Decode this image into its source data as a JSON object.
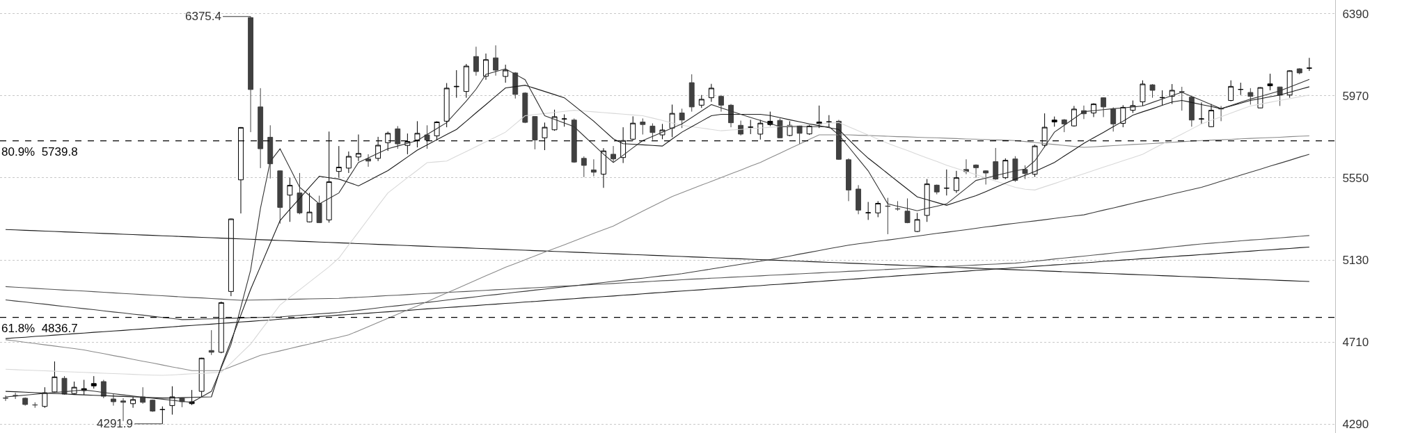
{
  "chart_data": {
    "type": "candlestick",
    "colors": [
      "#404040",
      "#404040",
      "#404040",
      "#404040",
      "#ffffff",
      "#ffffff",
      "#404040",
      "#ffffff",
      "#000000",
      "#000000",
      "#404040",
      "#404040",
      "#404040",
      "#ffffff",
      "#404040",
      "#404040",
      "#000000",
      "#ffffff",
      "#404040",
      "#000000",
      "#ffffff",
      "#404040",
      "#ffffff",
      "#ffffff",
      "#ffffff",
      "#404040",
      "#404040",
      "#404040",
      "#404040",
      "#ffffff",
      "#404040",
      "#ffffff",
      "#404040",
      "#ffffff",
      "#ffffff",
      "#ffffff",
      "#ffffff",
      "#404040",
      "#ffffff",
      "#ffffff",
      "#404040",
      "#ffffff",
      "#ffffff",
      "#404040",
      "#ffffff",
      "#ffffff",
      "#000000",
      "#ffffff",
      "#404040",
      "#ffffff",
      "#404040",
      "#ffffff",
      "#404040",
      "#404040",
      "#404040",
      "#ffffff",
      "#ffffff",
      "#000000",
      "#404040",
      "#404040",
      "#404040",
      "#ffffff",
      "#404040",
      "#ffffff",
      "#ffffff",
      "#404040",
      "#404040",
      "#ffffff",
      "#ffffff",
      "#404040",
      "#404040",
      "#ffffff",
      "#ffffff",
      "#404040",
      "#404040",
      "#404040",
      "#000000",
      "#ffffff",
      "#000000",
      "#404040",
      "#ffffff",
      "#404040",
      "#ffffff",
      "#000000",
      "#000000",
      "#404040",
      "#404040",
      "#404040",
      "#000000",
      "#ffffff",
      "#404040",
      "#404040",
      "#404040",
      "#ffffff",
      "#ffffff",
      "#404040",
      "#000000",
      "#ffffff",
      "#404040",
      "#404040",
      "#404040",
      "#404040",
      "#ffffff",
      "#404040",
      "#404040",
      "#ffffff",
      "#ffffff",
      "#000000",
      "#404040",
      "#ffffff",
      "#404040",
      "#ffffff",
      "#404040",
      "#404040",
      "#ffffff",
      "#ffffff",
      "#ffffff",
      "#404040",
      "#000000",
      "#ffffff",
      "#404040",
      "#404040",
      "#000000",
      "#ffffff",
      "#404040",
      "#ffffff",
      "#000000",
      "#404040",
      "#ffffff",
      "#000000",
      "#404040",
      "#ffffff",
      "#404040",
      "#000000"
    ],
    "categories": [
      null,
      null,
      null,
      null,
      null,
      null,
      null,
      null,
      null,
      null,
      null,
      null,
      null,
      null,
      null,
      null,
      null,
      null,
      null,
      null,
      null,
      null,
      null,
      null,
      null,
      null,
      null,
      null,
      null,
      null,
      null,
      null,
      null,
      null,
      null,
      null,
      null,
      null,
      null,
      null,
      null,
      null,
      null,
      null,
      null,
      null,
      null,
      null,
      null,
      null,
      null,
      null,
      null,
      null,
      null,
      null,
      null,
      null,
      null,
      null,
      null,
      null,
      null,
      null,
      null,
      null,
      null,
      null,
      null,
      null,
      null,
      null,
      null,
      null,
      null,
      null,
      null,
      null,
      null,
      null,
      null,
      null,
      null,
      null,
      null,
      null,
      null,
      null,
      null,
      null,
      null,
      null,
      null,
      null,
      null,
      null,
      null,
      null,
      null,
      null,
      null,
      null,
      null,
      null,
      null,
      null,
      null,
      null,
      null,
      null,
      null,
      null,
      null,
      null,
      null,
      null,
      null,
      null,
      null,
      null,
      null,
      null,
      null,
      null,
      null,
      null,
      null,
      null,
      null,
      null,
      null,
      null,
      null,
      null
    ],
    "ohlc": [
      [
        4423,
        4437,
        4409,
        4424
      ],
      [
        4437,
        4451,
        4419,
        4436
      ],
      [
        4423,
        4427,
        4385,
        4391
      ],
      [
        4388,
        4402,
        4374,
        4389
      ],
      [
        4381,
        4479,
        4374,
        4451
      ],
      [
        4455,
        4611,
        4451,
        4532
      ],
      [
        4525,
        4536,
        4441,
        4444
      ],
      [
        4447,
        4508,
        4441,
        4479
      ],
      [
        4462,
        4517,
        4441,
        4472
      ],
      [
        4486,
        4536,
        4472,
        4498
      ],
      [
        4508,
        4517,
        4423,
        4433
      ],
      [
        4419,
        4444,
        4385,
        4405
      ],
      [
        4409,
        4423,
        4306,
        4402
      ],
      [
        4395,
        4430,
        4374,
        4416
      ],
      [
        4430,
        4479,
        4395,
        4402
      ],
      [
        4413,
        4416,
        4353,
        4357
      ],
      [
        4364,
        4381,
        4291.9,
        4365
      ],
      [
        4385,
        4484,
        4339,
        4430
      ],
      [
        4423,
        4425,
        4377,
        4405
      ],
      [
        4395,
        4465,
        4388,
        4405
      ],
      [
        4458,
        4630,
        4430,
        4628
      ],
      [
        4667,
        4771,
        4644,
        4658
      ],
      [
        4658,
        4917,
        4653,
        4912
      ],
      [
        4969,
        5342,
        4945,
        5340
      ],
      [
        5540,
        5810,
        5368,
        5808
      ],
      [
        6370,
        6375.4,
        5784,
        6002
      ],
      [
        5913,
        6009,
        5600,
        5699
      ],
      [
        5758,
        5819,
        5547,
        5622
      ],
      [
        5586,
        5588,
        5316,
        5399
      ],
      [
        5462,
        5551,
        5325,
        5512
      ],
      [
        5473,
        5575,
        5364,
        5371
      ],
      [
        5325,
        5473,
        5322,
        5375
      ],
      [
        5420,
        5459,
        5319,
        5321
      ],
      [
        5335,
        5787,
        5321,
        5530
      ],
      [
        5583,
        5713,
        5551,
        5605
      ],
      [
        5600,
        5685,
        5575,
        5660
      ],
      [
        5657,
        5772,
        5636,
        5675
      ],
      [
        5647,
        5671,
        5607,
        5636
      ],
      [
        5650,
        5760,
        5636,
        5717
      ],
      [
        5730,
        5787,
        5688,
        5778
      ],
      [
        5801,
        5815,
        5699,
        5724
      ],
      [
        5716,
        5777,
        5671,
        5736
      ],
      [
        5744,
        5840,
        5706,
        5778
      ],
      [
        5770,
        5819,
        5699,
        5744
      ],
      [
        5765,
        5840,
        5741,
        5836
      ],
      [
        5840,
        6035,
        5809,
        6009
      ],
      [
        6016,
        6101,
        5960,
        6018
      ],
      [
        5992,
        6133,
        5960,
        6122
      ],
      [
        6171,
        6221,
        6073,
        6094
      ],
      [
        6070,
        6186,
        6052,
        6155
      ],
      [
        6164,
        6228,
        6073,
        6101
      ],
      [
        6069,
        6129,
        6037,
        6101
      ],
      [
        6087,
        6091,
        5956,
        5977
      ],
      [
        5984,
        5988,
        5830,
        5834
      ],
      [
        5864,
        5866,
        5696,
        5744
      ],
      [
        5755,
        5833,
        5692,
        5809
      ],
      [
        5796,
        5899,
        5791,
        5863
      ],
      [
        5851,
        5875,
        5812,
        5852
      ],
      [
        5846,
        5854,
        5627,
        5631
      ],
      [
        5650,
        5660,
        5554,
        5614
      ],
      [
        5591,
        5645,
        5558,
        5579
      ],
      [
        5569,
        5702,
        5499,
        5688
      ],
      [
        5671,
        5713,
        5629,
        5647
      ],
      [
        5654,
        5809,
        5626,
        5741
      ],
      [
        5748,
        5865,
        5741,
        5830
      ],
      [
        5836,
        5854,
        5772,
        5823
      ],
      [
        5815,
        5829,
        5744,
        5782
      ],
      [
        5770,
        5826,
        5748,
        5795
      ],
      [
        5805,
        5925,
        5758,
        5880
      ],
      [
        5882,
        5904,
        5805,
        5846
      ],
      [
        6037,
        6080,
        5889,
        5913
      ],
      [
        5922,
        5974,
        5908,
        5952
      ],
      [
        5960,
        6031,
        5939,
        6009
      ],
      [
        5967,
        5974,
        5889,
        5922
      ],
      [
        5922,
        5928,
        5809,
        5832
      ],
      [
        5819,
        5843,
        5767,
        5774
      ],
      [
        5809,
        5847,
        5774,
        5810
      ],
      [
        5774,
        5847,
        5746,
        5830
      ],
      [
        5823,
        5889,
        5815,
        5840
      ],
      [
        5844,
        5854,
        5753,
        5755
      ],
      [
        5767,
        5840,
        5763,
        5819
      ],
      [
        5816,
        5819,
        5724,
        5778
      ],
      [
        5775,
        5823,
        5770,
        5815
      ],
      [
        5826,
        5920,
        5805,
        5836
      ],
      [
        5836,
        5871,
        5812,
        5837
      ],
      [
        5840,
        5847,
        5642,
        5645
      ],
      [
        5643,
        5650,
        5431,
        5488
      ],
      [
        5493,
        5513,
        5364,
        5385
      ],
      [
        5371,
        5427,
        5335,
        5372
      ],
      [
        5371,
        5431,
        5349,
        5420
      ],
      [
        5406,
        5448,
        5262,
        5405
      ],
      [
        5392,
        5431,
        5382,
        5391
      ],
      [
        5380,
        5445,
        5318,
        5321
      ],
      [
        5276,
        5371,
        5273,
        5337
      ],
      [
        5358,
        5544,
        5325,
        5519
      ],
      [
        5513,
        5516,
        5466,
        5478
      ],
      [
        5497,
        5593,
        5460,
        5498
      ],
      [
        5485,
        5586,
        5473,
        5551
      ],
      [
        5593,
        5645,
        5569,
        5582
      ],
      [
        5616,
        5619,
        5551,
        5602
      ],
      [
        5586,
        5589,
        5516,
        5575
      ],
      [
        5633,
        5703,
        5540,
        5544
      ],
      [
        5551,
        5650,
        5544,
        5640
      ],
      [
        5647,
        5661,
        5530,
        5537
      ],
      [
        5593,
        5614,
        5544,
        5572
      ],
      [
        5569,
        5720,
        5555,
        5713
      ],
      [
        5717,
        5880,
        5706,
        5809
      ],
      [
        5836,
        5864,
        5812,
        5846
      ],
      [
        5847,
        5851,
        5784,
        5826
      ],
      [
        5816,
        5918,
        5812,
        5902
      ],
      [
        5894,
        5920,
        5851,
        5878
      ],
      [
        5882,
        5932,
        5861,
        5928
      ],
      [
        5960,
        5962,
        5861,
        5913
      ],
      [
        5902,
        5911,
        5787,
        5826
      ],
      [
        5829,
        5922,
        5809,
        5911
      ],
      [
        5896,
        5946,
        5882,
        5920
      ],
      [
        5939,
        6049,
        5918,
        6030
      ],
      [
        6026,
        6030,
        5960,
        5998
      ],
      [
        5960,
        5998,
        5922,
        5961
      ],
      [
        5967,
        6030,
        5928,
        5998
      ],
      [
        5991,
        6016,
        5894,
        5990
      ],
      [
        5963,
        5967,
        5812,
        5846
      ],
      [
        5851,
        5936,
        5826,
        5852
      ],
      [
        5812,
        5928,
        5810,
        5896
      ],
      [
        5904,
        5918,
        5840,
        5903
      ],
      [
        5946,
        6049,
        5942,
        6018
      ],
      [
        6002,
        6037,
        5974,
        6003
      ],
      [
        5987,
        6009,
        5925,
        5967
      ],
      [
        5908,
        6014,
        5906,
        6012
      ],
      [
        6021,
        6083,
        5998,
        6031
      ],
      [
        6015,
        6016,
        5918,
        5973
      ],
      [
        5974,
        6101,
        5960,
        6098
      ],
      [
        6108,
        6111,
        6080,
        6087
      ],
      [
        6111,
        6164,
        6097,
        6112
      ]
    ],
    "series": [
      {
        "type": "line",
        "color": "#1a1a1a",
        "values": [
          5286,
          5284,
          5282,
          5280,
          5278,
          5276,
          5274,
          5272,
          5270,
          5268,
          5266,
          5264,
          5262,
          5260,
          5258,
          5256,
          5254,
          5252,
          5250,
          5248,
          5246,
          5244,
          5242,
          5240,
          5238,
          5236,
          5234,
          5232,
          5230,
          5228,
          5226,
          5224,
          5222,
          5220,
          5218,
          5216,
          5214,
          5212,
          5210,
          5208,
          5206,
          5204,
          5202,
          5200,
          5198,
          5196,
          5194,
          5192,
          5190,
          5188,
          5186,
          5184,
          5182,
          5180,
          5178,
          5176,
          5174,
          5172,
          5170,
          5168,
          5166,
          5164,
          5162,
          5160,
          5158,
          5156,
          5154,
          5152,
          5150,
          5148,
          5146,
          5144,
          5142,
          5140,
          5138,
          5136,
          5134,
          5132,
          5130,
          5128,
          5126,
          5124,
          5122,
          5120,
          5118,
          5116,
          5114,
          5112,
          5110,
          5108,
          5106,
          5104,
          5102,
          5100,
          5098,
          5096,
          5094,
          5092,
          5090,
          5088,
          5086,
          5084,
          5082,
          5080,
          5078,
          5076,
          5074,
          5072,
          5070,
          5068,
          5066,
          5064,
          5062,
          5060,
          5058,
          5056,
          5054,
          5052,
          5050,
          5048,
          5046,
          5044,
          5042,
          5040,
          5038,
          5036,
          5034,
          5032,
          5030,
          5028,
          5026,
          5024,
          5022,
          5020
        ]
      },
      {
        "type": "line",
        "color": "#1a1a1a",
        "values": [
          4728,
          4732,
          4735,
          4739,
          4742,
          4746,
          4749,
          4753,
          4756,
          4760,
          4763,
          4767,
          4770,
          4774,
          4777,
          4781,
          4784,
          4788,
          4792,
          4795,
          4799,
          4802,
          4806,
          4809,
          4813,
          4816,
          4820,
          4823,
          4827,
          4830,
          4834,
          4837,
          4841,
          4844,
          4848,
          4851,
          4855,
          4858,
          4862,
          4865,
          4869,
          4872,
          4876,
          4880,
          4883,
          4887,
          4890,
          4894,
          4897,
          4901,
          4904,
          4908,
          4911,
          4915,
          4918,
          4922,
          4925,
          4929,
          4932,
          4936,
          4939,
          4943,
          4946,
          4950,
          4953,
          4957,
          4961,
          4964,
          4968,
          4971,
          4975,
          4978,
          4982,
          4985,
          4989,
          4992,
          4996,
          4999,
          5003,
          5006,
          5010,
          5013,
          5017,
          5020,
          5024,
          5027,
          5031,
          5034,
          5038,
          5042,
          5045,
          5049,
          5052,
          5056,
          5059,
          5063,
          5066,
          5070,
          5073,
          5077,
          5080,
          5084,
          5087,
          5091,
          5094,
          5098,
          5101,
          5105,
          5108,
          5112,
          5115,
          5119,
          5123,
          5126,
          5130,
          5133,
          5137,
          5140,
          5144,
          5147,
          5151,
          5154,
          5158,
          5161,
          5165,
          5168,
          5172,
          5175,
          5179,
          5182,
          5186,
          5189,
          5193,
          5196
        ]
      },
      {
        "type": "line",
        "color": "#555555",
        "values": [
          4994,
          4991,
          4988,
          4985,
          4982,
          4979,
          4976,
          4974,
          4971,
          4968,
          4965,
          4962,
          4959,
          4956,
          4953,
          4950,
          4947,
          4944,
          4941,
          4938,
          4936,
          4933,
          4930,
          4927,
          4924,
          4925,
          4926,
          4927,
          4928,
          4929,
          4930,
          4931,
          4932,
          4933,
          4934,
          4937,
          4939,
          4942,
          4945,
          4948,
          4950,
          4953,
          4956,
          4959,
          4961,
          4964,
          4967,
          4969,
          4972,
          4975,
          4978,
          4980,
          4983,
          4986,
          4988,
          4991,
          4994,
          4997,
          4999,
          5002,
          5005,
          5007,
          5010,
          5013,
          5015,
          5018,
          5021,
          5024,
          5026,
          5029,
          5032,
          5034,
          5037,
          5039,
          5042,
          5044,
          5047,
          5049,
          5052,
          5054,
          5057,
          5059,
          5062,
          5064,
          5067,
          5069,
          5072,
          5074,
          5077,
          5079,
          5082,
          5084,
          5087,
          5089,
          5092,
          5094,
          5097,
          5099,
          5102,
          5104,
          5107,
          5109,
          5112,
          5114,
          5119,
          5124,
          5129,
          5135,
          5140,
          5145,
          5150,
          5155,
          5160,
          5166,
          5171,
          5176,
          5181,
          5186,
          5191,
          5197,
          5202,
          5207,
          5212,
          5216,
          5220,
          5224,
          5228,
          5232,
          5235,
          5239,
          5243,
          5247,
          5251,
          5255
        ]
      },
      {
        "type": "line",
        "color": "#3a3a3a",
        "values": [
          4926,
          4920,
          4915,
          4909,
          4904,
          4898,
          4892,
          4887,
          4881,
          4876,
          4870,
          4864,
          4859,
          4853,
          4848,
          4842,
          4836,
          4831,
          4825,
          4826,
          4828,
          4829,
          4831,
          4832,
          4833,
          4835,
          4836,
          4838,
          4839,
          4843,
          4847,
          4851,
          4855,
          4858,
          4862,
          4868,
          4873,
          4879,
          4885,
          4891,
          4896,
          4902,
          4908,
          4913,
          4919,
          4925,
          4931,
          4936,
          4942,
          4948,
          4953,
          4959,
          4965,
          4970,
          4976,
          4981,
          4987,
          4993,
          4998,
          5004,
          5009,
          5015,
          5021,
          5026,
          5032,
          5037,
          5043,
          5049,
          5054,
          5060,
          5068,
          5076,
          5084,
          5092,
          5100,
          5108,
          5116,
          5124,
          5132,
          5141,
          5150,
          5160,
          5169,
          5178,
          5188,
          5197,
          5206,
          5213,
          5219,
          5226,
          5232,
          5239,
          5246,
          5252,
          5259,
          5266,
          5272,
          5279,
          5285,
          5292,
          5299,
          5305,
          5312,
          5318,
          5324,
          5330,
          5336,
          5343,
          5349,
          5355,
          5361,
          5373,
          5385,
          5396,
          5408,
          5420,
          5432,
          5443,
          5455,
          5467,
          5479,
          5490,
          5502,
          5517,
          5533,
          5548,
          5564,
          5579,
          5594,
          5610,
          5625,
          5640,
          5656,
          5671
        ]
      },
      {
        "type": "line",
        "color": "#8a8a8a",
        "values": [
          4722,
          4716,
          4709,
          4703,
          4696,
          4690,
          4683,
          4677,
          4670,
          4660,
          4651,
          4641,
          4632,
          4622,
          4612,
          4603,
          4593,
          4583,
          4574,
          4564,
          4564,
          4564,
          4564,
          4584,
          4603,
          4623,
          4642,
          4654,
          4665,
          4677,
          4689,
          4700,
          4712,
          4724,
          4735,
          4747,
          4768,
          4789,
          4810,
          4832,
          4853,
          4874,
          4895,
          4917,
          4939,
          4961,
          4983,
          5005,
          5027,
          5049,
          5071,
          5093,
          5112,
          5131,
          5151,
          5170,
          5189,
          5208,
          5227,
          5247,
          5266,
          5285,
          5304,
          5329,
          5354,
          5380,
          5405,
          5430,
          5455,
          5474,
          5494,
          5513,
          5532,
          5552,
          5571,
          5590,
          5610,
          5629,
          5653,
          5676,
          5700,
          5723,
          5747,
          5770,
          5770,
          5770,
          5770,
          5768,
          5767,
          5765,
          5763,
          5761,
          5760,
          5758,
          5756,
          5755,
          5753,
          5751,
          5749,
          5748,
          5746,
          5744,
          5743,
          5741,
          5736,
          5731,
          5726,
          5721,
          5716,
          5711,
          5706,
          5709,
          5712,
          5715,
          5718,
          5721,
          5723,
          5726,
          5729,
          5732,
          5735,
          5738,
          5741,
          5743,
          5745,
          5747,
          5750,
          5752,
          5754,
          5756,
          5758,
          5761,
          5763,
          5765
        ]
      },
      {
        "type": "line",
        "color": "#d8d8d8",
        "values": [
          4571,
          4569,
          4567,
          4565,
          4563,
          4561,
          4559,
          4557,
          4555,
          4553,
          4551,
          4549,
          4547,
          4545,
          4543,
          4541,
          4540,
          4542,
          4545,
          4548,
          4550,
          4553,
          4555,
          4603,
          4652,
          4700,
          4767,
          4833,
          4900,
          4939,
          4978,
          5017,
          5056,
          5095,
          5140,
          5207,
          5273,
          5340,
          5407,
          5473,
          5512,
          5551,
          5589,
          5628,
          5632,
          5636,
          5661,
          5685,
          5710,
          5735,
          5759,
          5784,
          5826,
          5868,
          5874,
          5879,
          5885,
          5890,
          5896,
          5892,
          5888,
          5884,
          5880,
          5876,
          5872,
          5868,
          5856,
          5844,
          5831,
          5819,
          5812,
          5805,
          5798,
          5791,
          5795,
          5798,
          5802,
          5805,
          5809,
          5812,
          5816,
          5819,
          5823,
          5826,
          5830,
          5833,
          5812,
          5791,
          5769,
          5748,
          5727,
          5708,
          5690,
          5671,
          5652,
          5634,
          5615,
          5599,
          5583,
          5567,
          5551,
          5534,
          5518,
          5502,
          5492,
          5488,
          5505,
          5521,
          5538,
          5555,
          5571,
          5588,
          5605,
          5621,
          5638,
          5654,
          5671,
          5697,
          5723,
          5749,
          5774,
          5800,
          5826,
          5844,
          5863,
          5881,
          5900,
          5918,
          5927,
          5937,
          5946,
          5955,
          5965,
          5974
        ]
      },
      {
        "type": "line",
        "color": "#1a1a1a",
        "values": [
          4458,
          4456,
          4454,
          4451,
          4449,
          4447,
          4445,
          4442,
          4440,
          4438,
          4436,
          4434,
          4432,
          4430,
          4428,
          4426,
          4424,
          4424,
          4426,
          4427,
          4429,
          4430,
          4585,
          4717,
          4848,
          4980,
          5097,
          5215,
          5332,
          5389,
          5445,
          5502,
          5558,
          5551,
          5544,
          5527,
          5509,
          5535,
          5561,
          5587,
          5622,
          5657,
          5692,
          5719,
          5745,
          5772,
          5798,
          5840,
          5883,
          5925,
          5968,
          6010,
          6017,
          6024,
          6008,
          5992,
          5976,
          5960,
          5920,
          5880,
          5840,
          5795,
          5750,
          5725,
          5722,
          5719,
          5716,
          5713,
          5749,
          5784,
          5812,
          5840,
          5868,
          5875,
          5875,
          5875,
          5875,
          5875,
          5869,
          5858,
          5847,
          5837,
          5826,
          5817,
          5807,
          5798,
          5747,
          5697,
          5651,
          5612,
          5572,
          5532,
          5493,
          5453,
          5439,
          5424,
          5410,
          5426,
          5443,
          5459,
          5480,
          5502,
          5523,
          5544,
          5563,
          5583,
          5606,
          5629,
          5662,
          5694,
          5727,
          5755,
          5783,
          5812,
          5840,
          5871,
          5888,
          5904,
          5921,
          5938,
          5946,
          5936,
          5925,
          5915,
          5904,
          5918,
          5932,
          5946,
          5955,
          5965,
          5974,
          5988,
          6002,
          6016
        ]
      },
      {
        "type": "line",
        "color": "#333333",
        "values": [
          4430,
          4434,
          4439,
          4443,
          4448,
          4452,
          4456,
          4461,
          4465,
          4459,
          4452,
          4446,
          4440,
          4434,
          4428,
          4423,
          4418,
          4412,
          4407,
          4402,
          4430,
          4458,
          4578,
          4698,
          4889,
          5079,
          5394,
          5634,
          5699,
          5601,
          5502,
          5460,
          5417,
          5445,
          5473,
          5551,
          5629,
          5652,
          5676,
          5699,
          5713,
          5727,
          5741,
          5772,
          5802,
          5833,
          5888,
          5943,
          6004,
          6080,
          6094,
          6108,
          6080,
          6052,
          5960,
          5868,
          5849,
          5831,
          5812,
          5765,
          5718,
          5671,
          5629,
          5666,
          5704,
          5741,
          5762,
          5784,
          5805,
          5826,
          5859,
          5892,
          5925,
          5908,
          5892,
          5875,
          5859,
          5844,
          5828,
          5812,
          5812,
          5812,
          5812,
          5812,
          5812,
          5770,
          5709,
          5647,
          5586,
          5502,
          5417,
          5405,
          5394,
          5382,
          5394,
          5405,
          5417,
          5457,
          5497,
          5537,
          5549,
          5562,
          5574,
          5586,
          5595,
          5637,
          5710,
          5784,
          5819,
          5854,
          5889,
          5894,
          5899,
          5904,
          5908,
          5913,
          5918,
          5936,
          5953,
          5971,
          5988,
          5967,
          5946,
          5925,
          5904,
          5920,
          5937,
          5953,
          5967,
          5981,
          5995,
          6015,
          6034,
          6054
        ]
      }
    ],
    "ylim": [
      4245,
      6460
    ],
    "yticks": [
      4290,
      4710,
      5130,
      5550,
      5970,
      6390
    ],
    "tick_labels": "y",
    "grid": "y",
    "ref_lines": [
      {
        "axis": "y",
        "value": 5739.8,
        "label": "80.9%  5739.8",
        "color": "#000000",
        "line_style": "dashed"
      },
      {
        "axis": "y",
        "value": 4836.7,
        "label": "61.8%  4836.7",
        "color": "#000000",
        "line_style": "dashed"
      }
    ],
    "annotations": [
      "6375.4",
      "4291.9"
    ]
  }
}
